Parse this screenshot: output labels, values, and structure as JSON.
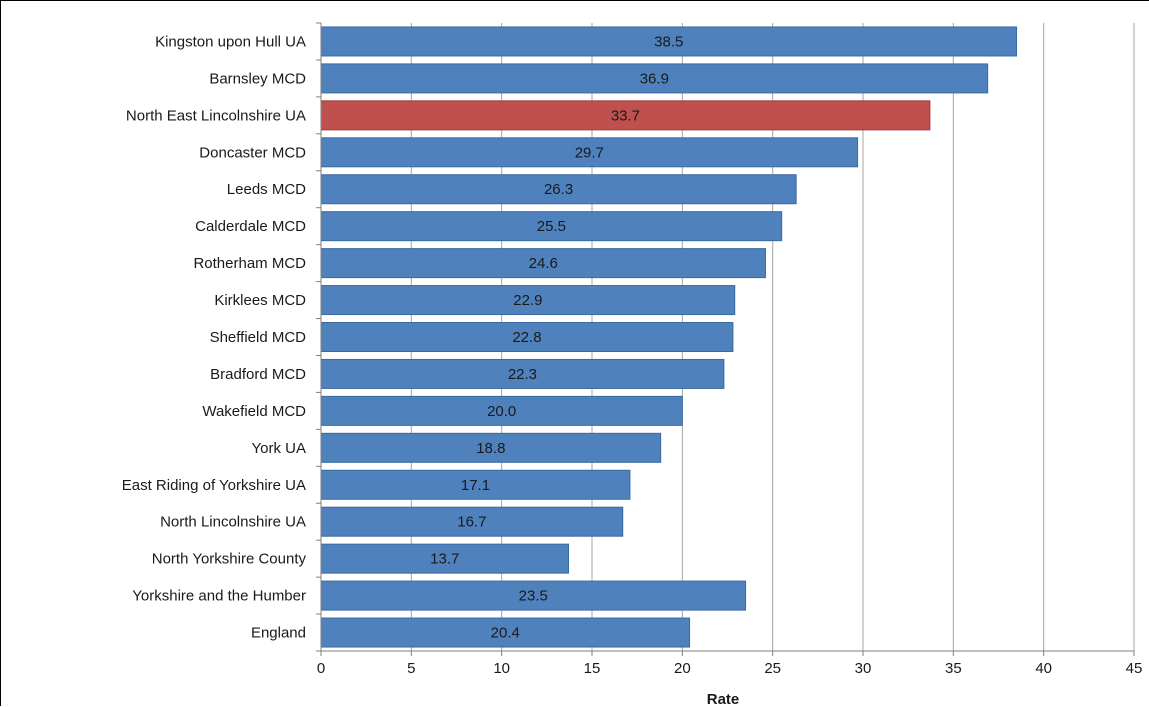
{
  "chart_data": {
    "type": "bar",
    "orientation": "horizontal",
    "title": "",
    "xlabel": "Rate",
    "ylabel": "",
    "xlim": [
      0,
      45
    ],
    "xticks": [
      0,
      5,
      10,
      15,
      20,
      25,
      30,
      35,
      40,
      45
    ],
    "grid": "vertical",
    "legend": "none",
    "categories": [
      "Kingston upon Hull UA",
      "Barnsley MCD",
      "North East Lincolnshire UA",
      "Doncaster MCD",
      "Leeds MCD",
      "Calderdale MCD",
      "Rotherham MCD",
      "Kirklees MCD",
      "Sheffield MCD",
      "Bradford MCD",
      "Wakefield MCD",
      "York UA",
      "East Riding of Yorkshire UA",
      "North Lincolnshire UA",
      "North Yorkshire County",
      "Yorkshire and the Humber",
      "England"
    ],
    "values": [
      38.5,
      36.9,
      33.7,
      29.7,
      26.3,
      25.5,
      24.6,
      22.9,
      22.8,
      22.3,
      20.0,
      18.8,
      17.1,
      16.7,
      13.7,
      23.5,
      20.4
    ],
    "value_labels": [
      "38.5",
      "36.9",
      "33.7",
      "29.7",
      "26.3",
      "25.5",
      "24.6",
      "22.9",
      "22.8",
      "22.3",
      "20.0",
      "18.8",
      "17.1",
      "16.7",
      "13.7",
      "23.5",
      "20.4"
    ],
    "highlight_category": "North East Lincolnshire UA",
    "colors": {
      "bar": "#4f81bd",
      "bar_border": "#3a6aa3",
      "highlight": "#c0504d",
      "highlight_border": "#9c3a37",
      "grid": "#a6a6a6",
      "axis": "#7f7f7f"
    }
  }
}
